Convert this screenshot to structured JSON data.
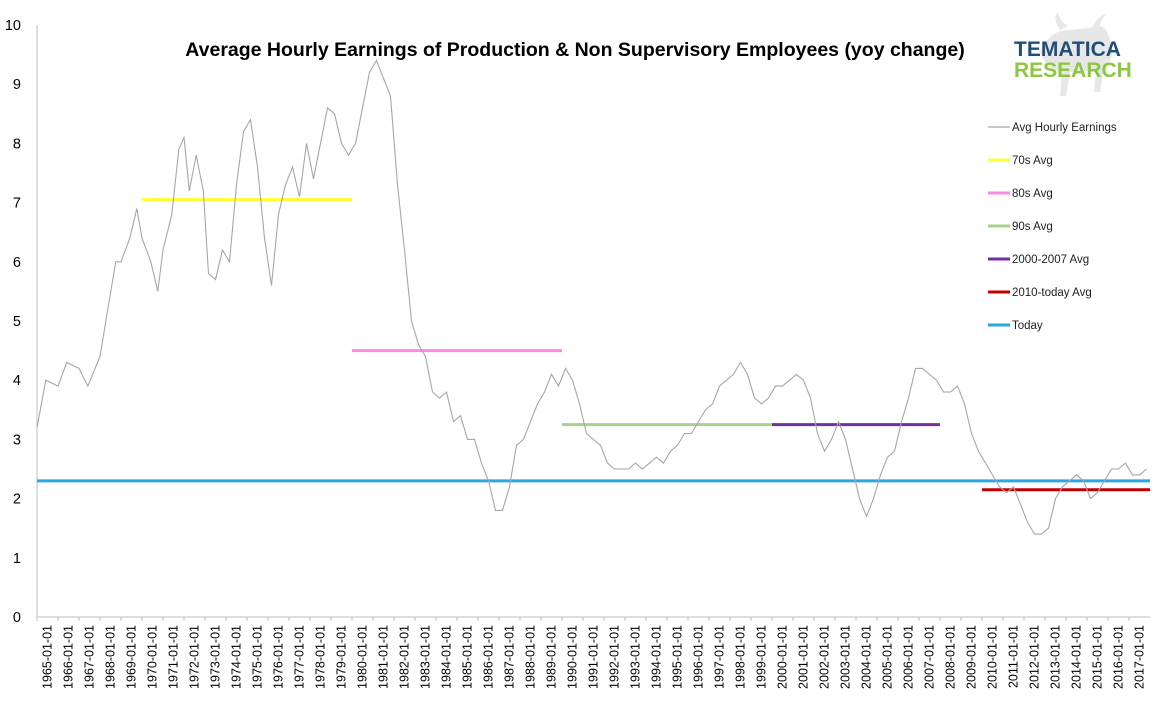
{
  "chart_data": {
    "type": "line",
    "title": "Average Hourly Earnings of Production & Non Supervisory Employees (yoy change)",
    "xlabel": "",
    "ylabel": "",
    "ylim": [
      0,
      10
    ],
    "yticks": [
      0,
      1,
      2,
      3,
      4,
      5,
      6,
      7,
      8,
      9,
      10
    ],
    "x_tick_labels": [
      "1965-01-01",
      "1966-01-01",
      "1967-01-01",
      "1968-01-01",
      "1969-01-01",
      "1970-01-01",
      "1971-01-01",
      "1972-01-01",
      "1973-01-01",
      "1974-01-01",
      "1975-01-01",
      "1976-01-01",
      "1977-01-01",
      "1978-01-01",
      "1979-01-01",
      "1980-01-01",
      "1981-01-01",
      "1982-01-01",
      "1983-01-01",
      "1984-01-01",
      "1985-01-01",
      "1986-01-01",
      "1987-01-01",
      "1988-01-01",
      "1989-01-01",
      "1990-01-01",
      "1991-01-01",
      "1992-01-01",
      "1993-01-01",
      "1994-01-01",
      "1995-01-01",
      "1996-01-01",
      "1997-01-01",
      "1998-01-01",
      "1999-01-01",
      "2000-01-01",
      "2001-01-01",
      "2002-01-01",
      "2003-01-01",
      "2004-01-01",
      "2005-01-01",
      "2006-01-01",
      "2007-01-01",
      "2008-01-01",
      "2009-01-01",
      "2010-01-01",
      "2011-01-01",
      "2012-01-01",
      "2013-01-01",
      "2014-01-01",
      "2015-01-01",
      "2016-01-01",
      "2017-01-01"
    ],
    "grid": false,
    "legend_position": "right",
    "series": [
      {
        "name": "Avg Hourly Earnings",
        "color": "#a6a6a6",
        "points": [
          [
            "1965-01",
            3.2
          ],
          [
            "1965-06",
            4.0
          ],
          [
            "1966-01",
            3.9
          ],
          [
            "1966-06",
            4.3
          ],
          [
            "1967-01",
            4.2
          ],
          [
            "1967-06",
            3.9
          ],
          [
            "1968-01",
            4.4
          ],
          [
            "1968-06",
            5.3
          ],
          [
            "1968-10",
            6.0
          ],
          [
            "1969-01",
            6.0
          ],
          [
            "1969-06",
            6.4
          ],
          [
            "1969-10",
            6.9
          ],
          [
            "1970-01",
            6.4
          ],
          [
            "1970-06",
            6.0
          ],
          [
            "1970-10",
            5.5
          ],
          [
            "1971-01",
            6.2
          ],
          [
            "1971-06",
            6.8
          ],
          [
            "1971-10",
            7.9
          ],
          [
            "1972-01",
            8.1
          ],
          [
            "1972-04",
            7.2
          ],
          [
            "1972-08",
            7.8
          ],
          [
            "1972-12",
            7.2
          ],
          [
            "1973-03",
            5.8
          ],
          [
            "1973-07",
            5.7
          ],
          [
            "1973-11",
            6.2
          ],
          [
            "1974-03",
            6.0
          ],
          [
            "1974-07",
            7.3
          ],
          [
            "1974-11",
            8.2
          ],
          [
            "1975-03",
            8.4
          ],
          [
            "1975-07",
            7.6
          ],
          [
            "1975-11",
            6.4
          ],
          [
            "1976-03",
            5.6
          ],
          [
            "1976-07",
            6.8
          ],
          [
            "1976-11",
            7.3
          ],
          [
            "1977-03",
            7.6
          ],
          [
            "1977-07",
            7.1
          ],
          [
            "1977-11",
            8.0
          ],
          [
            "1978-03",
            7.4
          ],
          [
            "1978-07",
            8.0
          ],
          [
            "1978-11",
            8.6
          ],
          [
            "1979-03",
            8.5
          ],
          [
            "1979-07",
            8.0
          ],
          [
            "1979-11",
            7.8
          ],
          [
            "1980-03",
            8.0
          ],
          [
            "1980-07",
            8.6
          ],
          [
            "1980-11",
            9.2
          ],
          [
            "1981-03",
            9.4
          ],
          [
            "1981-07",
            9.1
          ],
          [
            "1981-11",
            8.8
          ],
          [
            "1982-03",
            7.3
          ],
          [
            "1982-07",
            6.2
          ],
          [
            "1982-11",
            5.0
          ],
          [
            "1983-03",
            4.6
          ],
          [
            "1983-07",
            4.4
          ],
          [
            "1983-11",
            3.8
          ],
          [
            "1984-03",
            3.7
          ],
          [
            "1984-07",
            3.8
          ],
          [
            "1984-11",
            3.3
          ],
          [
            "1985-03",
            3.4
          ],
          [
            "1985-07",
            3.0
          ],
          [
            "1985-11",
            3.0
          ],
          [
            "1986-03",
            2.6
          ],
          [
            "1986-07",
            2.3
          ],
          [
            "1986-11",
            1.8
          ],
          [
            "1987-03",
            1.8
          ],
          [
            "1987-07",
            2.2
          ],
          [
            "1987-11",
            2.9
          ],
          [
            "1988-03",
            3.0
          ],
          [
            "1988-07",
            3.3
          ],
          [
            "1988-11",
            3.6
          ],
          [
            "1989-03",
            3.8
          ],
          [
            "1989-07",
            4.1
          ],
          [
            "1989-11",
            3.9
          ],
          [
            "1990-03",
            4.2
          ],
          [
            "1990-07",
            4.0
          ],
          [
            "1990-11",
            3.6
          ],
          [
            "1991-03",
            3.1
          ],
          [
            "1991-07",
            3.0
          ],
          [
            "1991-11",
            2.9
          ],
          [
            "1992-03",
            2.6
          ],
          [
            "1992-07",
            2.5
          ],
          [
            "1992-11",
            2.5
          ],
          [
            "1993-03",
            2.5
          ],
          [
            "1993-07",
            2.6
          ],
          [
            "1993-11",
            2.5
          ],
          [
            "1994-03",
            2.6
          ],
          [
            "1994-07",
            2.7
          ],
          [
            "1994-11",
            2.6
          ],
          [
            "1995-03",
            2.8
          ],
          [
            "1995-07",
            2.9
          ],
          [
            "1995-11",
            3.1
          ],
          [
            "1996-03",
            3.1
          ],
          [
            "1996-07",
            3.3
          ],
          [
            "1996-11",
            3.5
          ],
          [
            "1997-03",
            3.6
          ],
          [
            "1997-07",
            3.9
          ],
          [
            "1997-11",
            4.0
          ],
          [
            "1998-03",
            4.1
          ],
          [
            "1998-07",
            4.3
          ],
          [
            "1998-11",
            4.1
          ],
          [
            "1999-03",
            3.7
          ],
          [
            "1999-07",
            3.6
          ],
          [
            "1999-11",
            3.7
          ],
          [
            "2000-03",
            3.9
          ],
          [
            "2000-07",
            3.9
          ],
          [
            "2000-11",
            4.0
          ],
          [
            "2001-03",
            4.1
          ],
          [
            "2001-07",
            4.0
          ],
          [
            "2001-11",
            3.7
          ],
          [
            "2002-03",
            3.1
          ],
          [
            "2002-07",
            2.8
          ],
          [
            "2002-11",
            3.0
          ],
          [
            "2003-03",
            3.3
          ],
          [
            "2003-07",
            3.0
          ],
          [
            "2003-11",
            2.5
          ],
          [
            "2004-03",
            2.0
          ],
          [
            "2004-07",
            1.7
          ],
          [
            "2004-11",
            2.0
          ],
          [
            "2005-03",
            2.4
          ],
          [
            "2005-07",
            2.7
          ],
          [
            "2005-11",
            2.8
          ],
          [
            "2006-03",
            3.3
          ],
          [
            "2006-07",
            3.7
          ],
          [
            "2006-11",
            4.2
          ],
          [
            "2007-03",
            4.2
          ],
          [
            "2007-07",
            4.1
          ],
          [
            "2007-11",
            4.0
          ],
          [
            "2008-03",
            3.8
          ],
          [
            "2008-07",
            3.8
          ],
          [
            "2008-11",
            3.9
          ],
          [
            "2009-03",
            3.6
          ],
          [
            "2009-07",
            3.1
          ],
          [
            "2009-11",
            2.8
          ],
          [
            "2010-03",
            2.6
          ],
          [
            "2010-07",
            2.4
          ],
          [
            "2010-11",
            2.2
          ],
          [
            "2011-03",
            2.1
          ],
          [
            "2011-07",
            2.2
          ],
          [
            "2011-11",
            1.9
          ],
          [
            "2012-03",
            1.6
          ],
          [
            "2012-07",
            1.4
          ],
          [
            "2012-11",
            1.4
          ],
          [
            "2013-03",
            1.5
          ],
          [
            "2013-07",
            2.0
          ],
          [
            "2013-11",
            2.2
          ],
          [
            "2014-03",
            2.3
          ],
          [
            "2014-07",
            2.4
          ],
          [
            "2014-11",
            2.3
          ],
          [
            "2015-03",
            2.0
          ],
          [
            "2015-07",
            2.1
          ],
          [
            "2015-11",
            2.3
          ],
          [
            "2016-03",
            2.5
          ],
          [
            "2016-07",
            2.5
          ],
          [
            "2016-11",
            2.6
          ],
          [
            "2017-03",
            2.4
          ],
          [
            "2017-07",
            2.4
          ],
          [
            "2017-11",
            2.5
          ]
        ]
      },
      {
        "name": "70s Avg",
        "color": "#ffff33",
        "value": 7.05,
        "start": "1970-01",
        "end": "1980-01"
      },
      {
        "name": "80s Avg",
        "color": "#ff88e0",
        "value": 4.5,
        "start": "1980-01",
        "end": "1990-01"
      },
      {
        "name": "90s Avg",
        "color": "#a9d18e",
        "value": 3.25,
        "start": "1990-01",
        "end": "2000-01"
      },
      {
        "name": "2000-2007 Avg",
        "color": "#7030a0",
        "value": 3.25,
        "start": "2000-01",
        "end": "2008-01"
      },
      {
        "name": "2010-today Avg",
        "color": "#c00000",
        "value": 2.15,
        "start": "2010-01",
        "end": "2018-01"
      },
      {
        "name": "Today",
        "color": "#2aa9e0",
        "value": 2.3,
        "start": "1965-01",
        "end": "2018-01"
      }
    ]
  },
  "logo": {
    "line1": "TEMATICA",
    "line2": "RESEARCH",
    "color1": "#1f4e79",
    "color2": "#8dc63f",
    "icon": "bull-icon"
  }
}
